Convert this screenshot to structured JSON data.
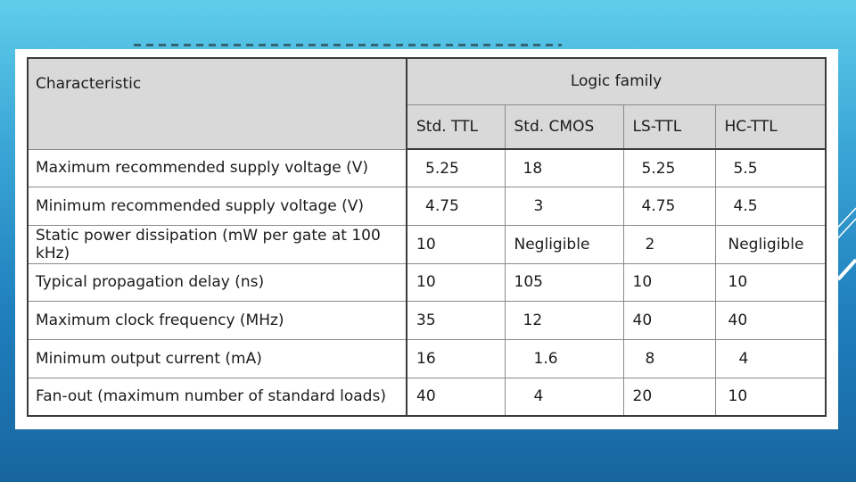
{
  "table": {
    "characteristic_header": "Characteristic",
    "family_header": "Logic family",
    "columns": [
      "Std. TTL",
      "Std. CMOS",
      "LS-TTL",
      "HC-TTL"
    ],
    "rows": [
      {
        "label": "Maximum recommended supply voltage (V)",
        "values": [
          "5.25",
          "18",
          "5.25",
          "5.5"
        ]
      },
      {
        "label": "Minimum recommended supply voltage (V)",
        "values": [
          "4.75",
          "3",
          "4.75",
          "4.5"
        ]
      },
      {
        "label": "Static power dissipation (mW per gate at 100 kHz)",
        "values": [
          "10",
          "Negligible",
          "2",
          "Negligible"
        ]
      },
      {
        "label": "Typical propagation delay (ns)",
        "values": [
          "10",
          "105",
          "10",
          "10"
        ]
      },
      {
        "label": "Maximum clock frequency (MHz)",
        "values": [
          "35",
          "12",
          "40",
          "40"
        ]
      },
      {
        "label": "Minimum output current (mA)",
        "values": [
          "16",
          "1.6",
          "8",
          "4"
        ]
      },
      {
        "label": "Fan-out (maximum number of standard loads)",
        "values": [
          "40",
          "4",
          "20",
          "10"
        ]
      }
    ]
  }
}
